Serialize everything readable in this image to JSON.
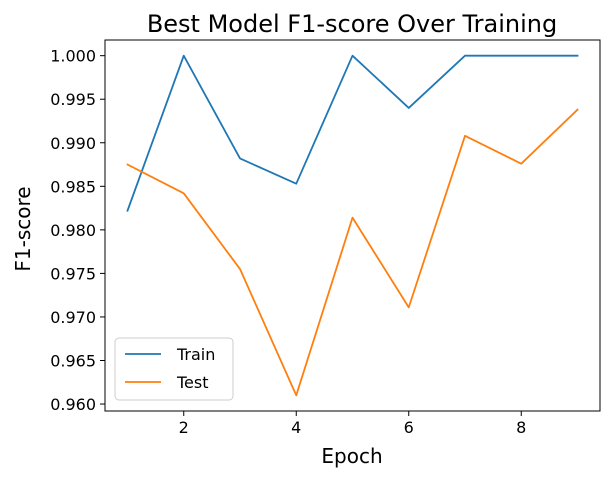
{
  "chart_data": {
    "type": "line",
    "title": "Best Model F1-score Over Training",
    "xlabel": "Epoch",
    "ylabel": "F1-score",
    "x": [
      1,
      2,
      3,
      4,
      5,
      6,
      7,
      8,
      9
    ],
    "series": [
      {
        "name": "Train",
        "color": "#1f77b4",
        "values": [
          0.9822,
          1.0,
          0.9882,
          0.9853,
          1.0,
          0.994,
          1.0,
          1.0,
          1.0
        ]
      },
      {
        "name": "Test",
        "color": "#ff7f0e",
        "values": [
          0.9875,
          0.9842,
          0.9755,
          0.961,
          0.9814,
          0.9711,
          0.9908,
          0.9876,
          0.9938
        ]
      }
    ],
    "xlim": [
      0.6,
      9.4
    ],
    "ylim": [
      0.9592,
      1.0018
    ],
    "xticks": [
      2,
      4,
      6,
      8
    ],
    "xtick_labels": [
      "2",
      "4",
      "6",
      "8"
    ],
    "yticks": [
      0.96,
      0.965,
      0.97,
      0.975,
      0.98,
      0.985,
      0.99,
      0.995,
      1.0
    ],
    "ytick_labels": [
      "0.960",
      "0.965",
      "0.970",
      "0.975",
      "0.980",
      "0.985",
      "0.990",
      "0.995",
      "1.000"
    ],
    "grid": false,
    "legend_position": "lower-left"
  }
}
